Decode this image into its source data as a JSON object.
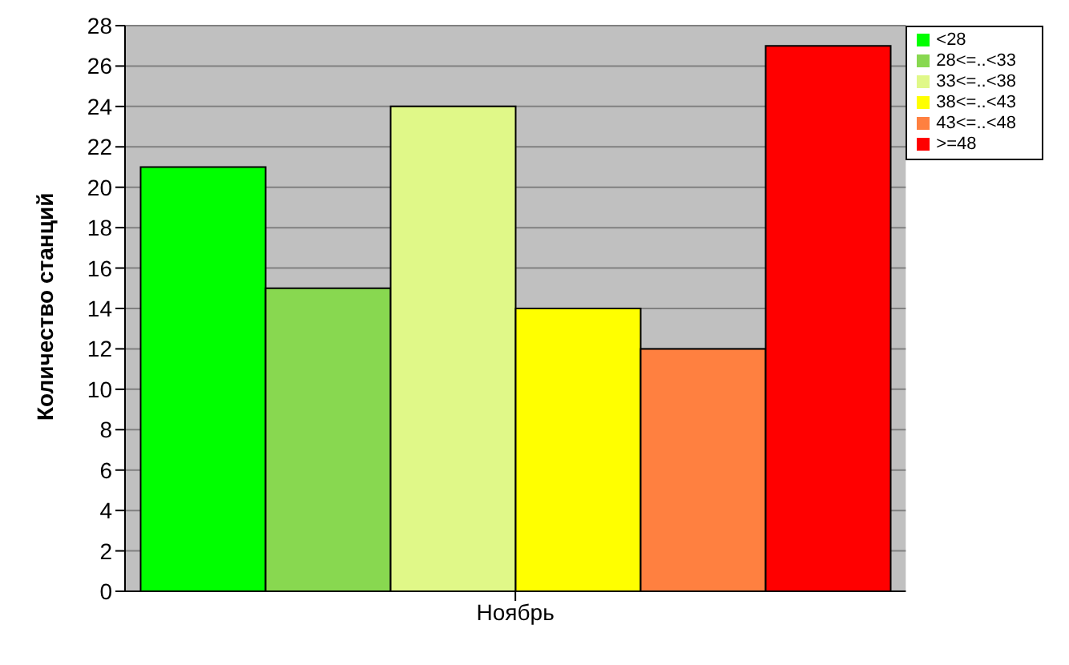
{
  "chart_data": {
    "type": "bar",
    "ylabel": "Количество станций",
    "categories": [
      "Ноябрь"
    ],
    "series": [
      {
        "name": "<28",
        "color": "#00ff00",
        "values": [
          21
        ]
      },
      {
        "name": "28<=..<33",
        "color": "#88d850",
        "values": [
          15
        ]
      },
      {
        "name": "33<=..<38",
        "color": "#e0f888",
        "values": [
          24
        ]
      },
      {
        "name": "38<=..<43",
        "color": "#ffff00",
        "values": [
          14
        ]
      },
      {
        "name": "43<=..<48",
        "color": "#ff8040",
        "values": [
          12
        ]
      },
      {
        "name": ">=48",
        "color": "#ff0000",
        "values": [
          27
        ]
      }
    ],
    "ylim": [
      0,
      28
    ],
    "yticks": [
      0,
      2,
      4,
      6,
      8,
      10,
      12,
      14,
      16,
      18,
      20,
      22,
      24,
      26,
      28
    ],
    "grid": "y",
    "legend": "top right"
  }
}
